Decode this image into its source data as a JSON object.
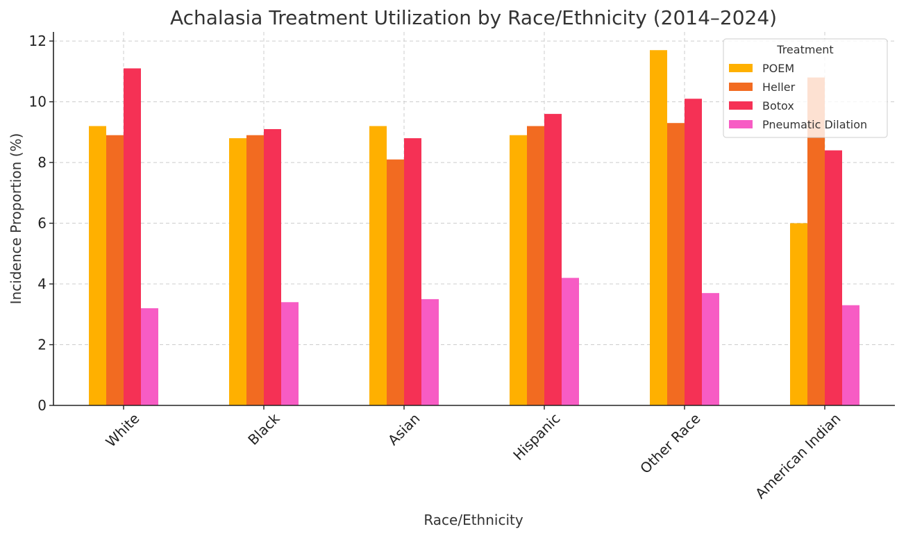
{
  "chart_data": {
    "type": "bar",
    "title": "Achalasia Treatment Utilization by Race/Ethnicity (2014–2024)",
    "xlabel": "Race/Ethnicity",
    "ylabel": "Incidence Proportion (%)",
    "categories": [
      "White",
      "Black",
      "Asian",
      "Hispanic",
      "Other Race",
      "American Indian"
    ],
    "ylim": [
      0,
      12.3
    ],
    "yticks": [
      0,
      2,
      4,
      6,
      8,
      10,
      12
    ],
    "grid": true,
    "legend": {
      "title": "Treatment",
      "placement": "top-right"
    },
    "series": [
      {
        "name": "POEM",
        "color": "#FFB000",
        "values": [
          9.2,
          8.8,
          9.2,
          8.9,
          11.7,
          6.0
        ]
      },
      {
        "name": "Heller",
        "color": "#F26B21",
        "values": [
          8.9,
          8.9,
          8.1,
          9.2,
          9.3,
          10.8
        ]
      },
      {
        "name": "Botox",
        "color": "#F53155",
        "values": [
          11.1,
          9.1,
          8.8,
          9.6,
          10.1,
          8.4
        ]
      },
      {
        "name": "Pneumatic Dilation",
        "color": "#F75CC4",
        "values": [
          3.2,
          3.4,
          3.5,
          4.2,
          3.7,
          3.3
        ]
      }
    ]
  }
}
